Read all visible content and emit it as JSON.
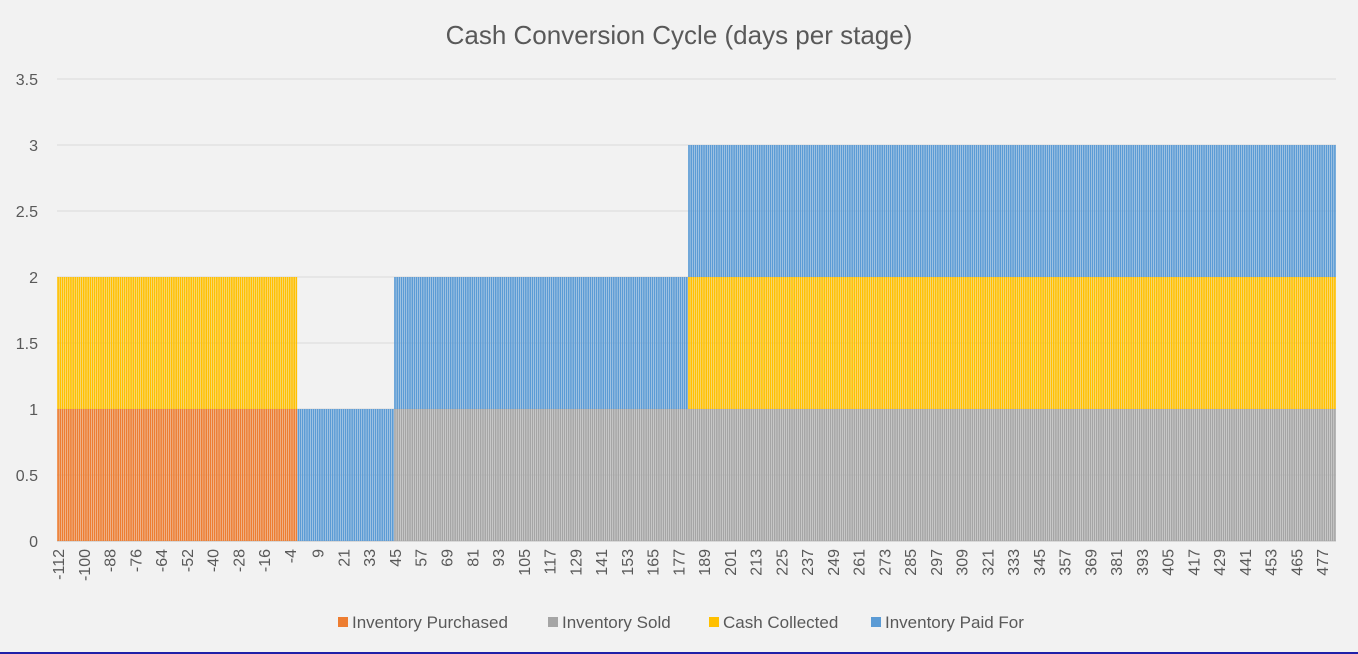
{
  "chart_data": {
    "type": "bar",
    "stacked": true,
    "title": "Cash Conversion Cycle (days per stage)",
    "xlabel": "",
    "ylabel": "",
    "ylim": [
      0,
      3.5
    ],
    "yticks": [
      "0",
      "0.5",
      "1",
      "1.5",
      "2",
      "2.5",
      "3",
      "3.5"
    ],
    "x_range": [
      -112,
      483
    ],
    "x_tick_labels": [
      "-112",
      "-100",
      "-88",
      "-76",
      "-64",
      "-52",
      "-40",
      "-28",
      "-16",
      "-4",
      "9",
      "21",
      "33",
      "45",
      "57",
      "69",
      "81",
      "93",
      "105",
      "117",
      "129",
      "141",
      "153",
      "165",
      "177",
      "189",
      "201",
      "213",
      "225",
      "237",
      "249",
      "261",
      "273",
      "285",
      "297",
      "309",
      "321",
      "333",
      "345",
      "357",
      "369",
      "381",
      "393",
      "405",
      "417",
      "429",
      "441",
      "453",
      "465",
      "477"
    ],
    "grid": true,
    "legend_position": "bottom",
    "series": [
      {
        "name": "Inventory Purchased",
        "color": "#ed7d31",
        "segments": [
          {
            "x_from": -112,
            "x_to": -1,
            "value": 1
          }
        ]
      },
      {
        "name": "Inventory Sold",
        "color": "#a5a5a5",
        "segments": [
          {
            "x_from": 45,
            "x_to": 483,
            "value": 1
          }
        ]
      },
      {
        "name": "Cash Collected",
        "color": "#ffc000",
        "segments": [
          {
            "x_from": -112,
            "x_to": -1,
            "value": 1
          },
          {
            "x_from": 182,
            "x_to": 483,
            "value": 1
          }
        ]
      },
      {
        "name": "Inventory Paid For",
        "color": "#5b9bd5",
        "segments": [
          {
            "x_from": 0,
            "x_to": 483,
            "value": 1
          }
        ]
      }
    ]
  }
}
